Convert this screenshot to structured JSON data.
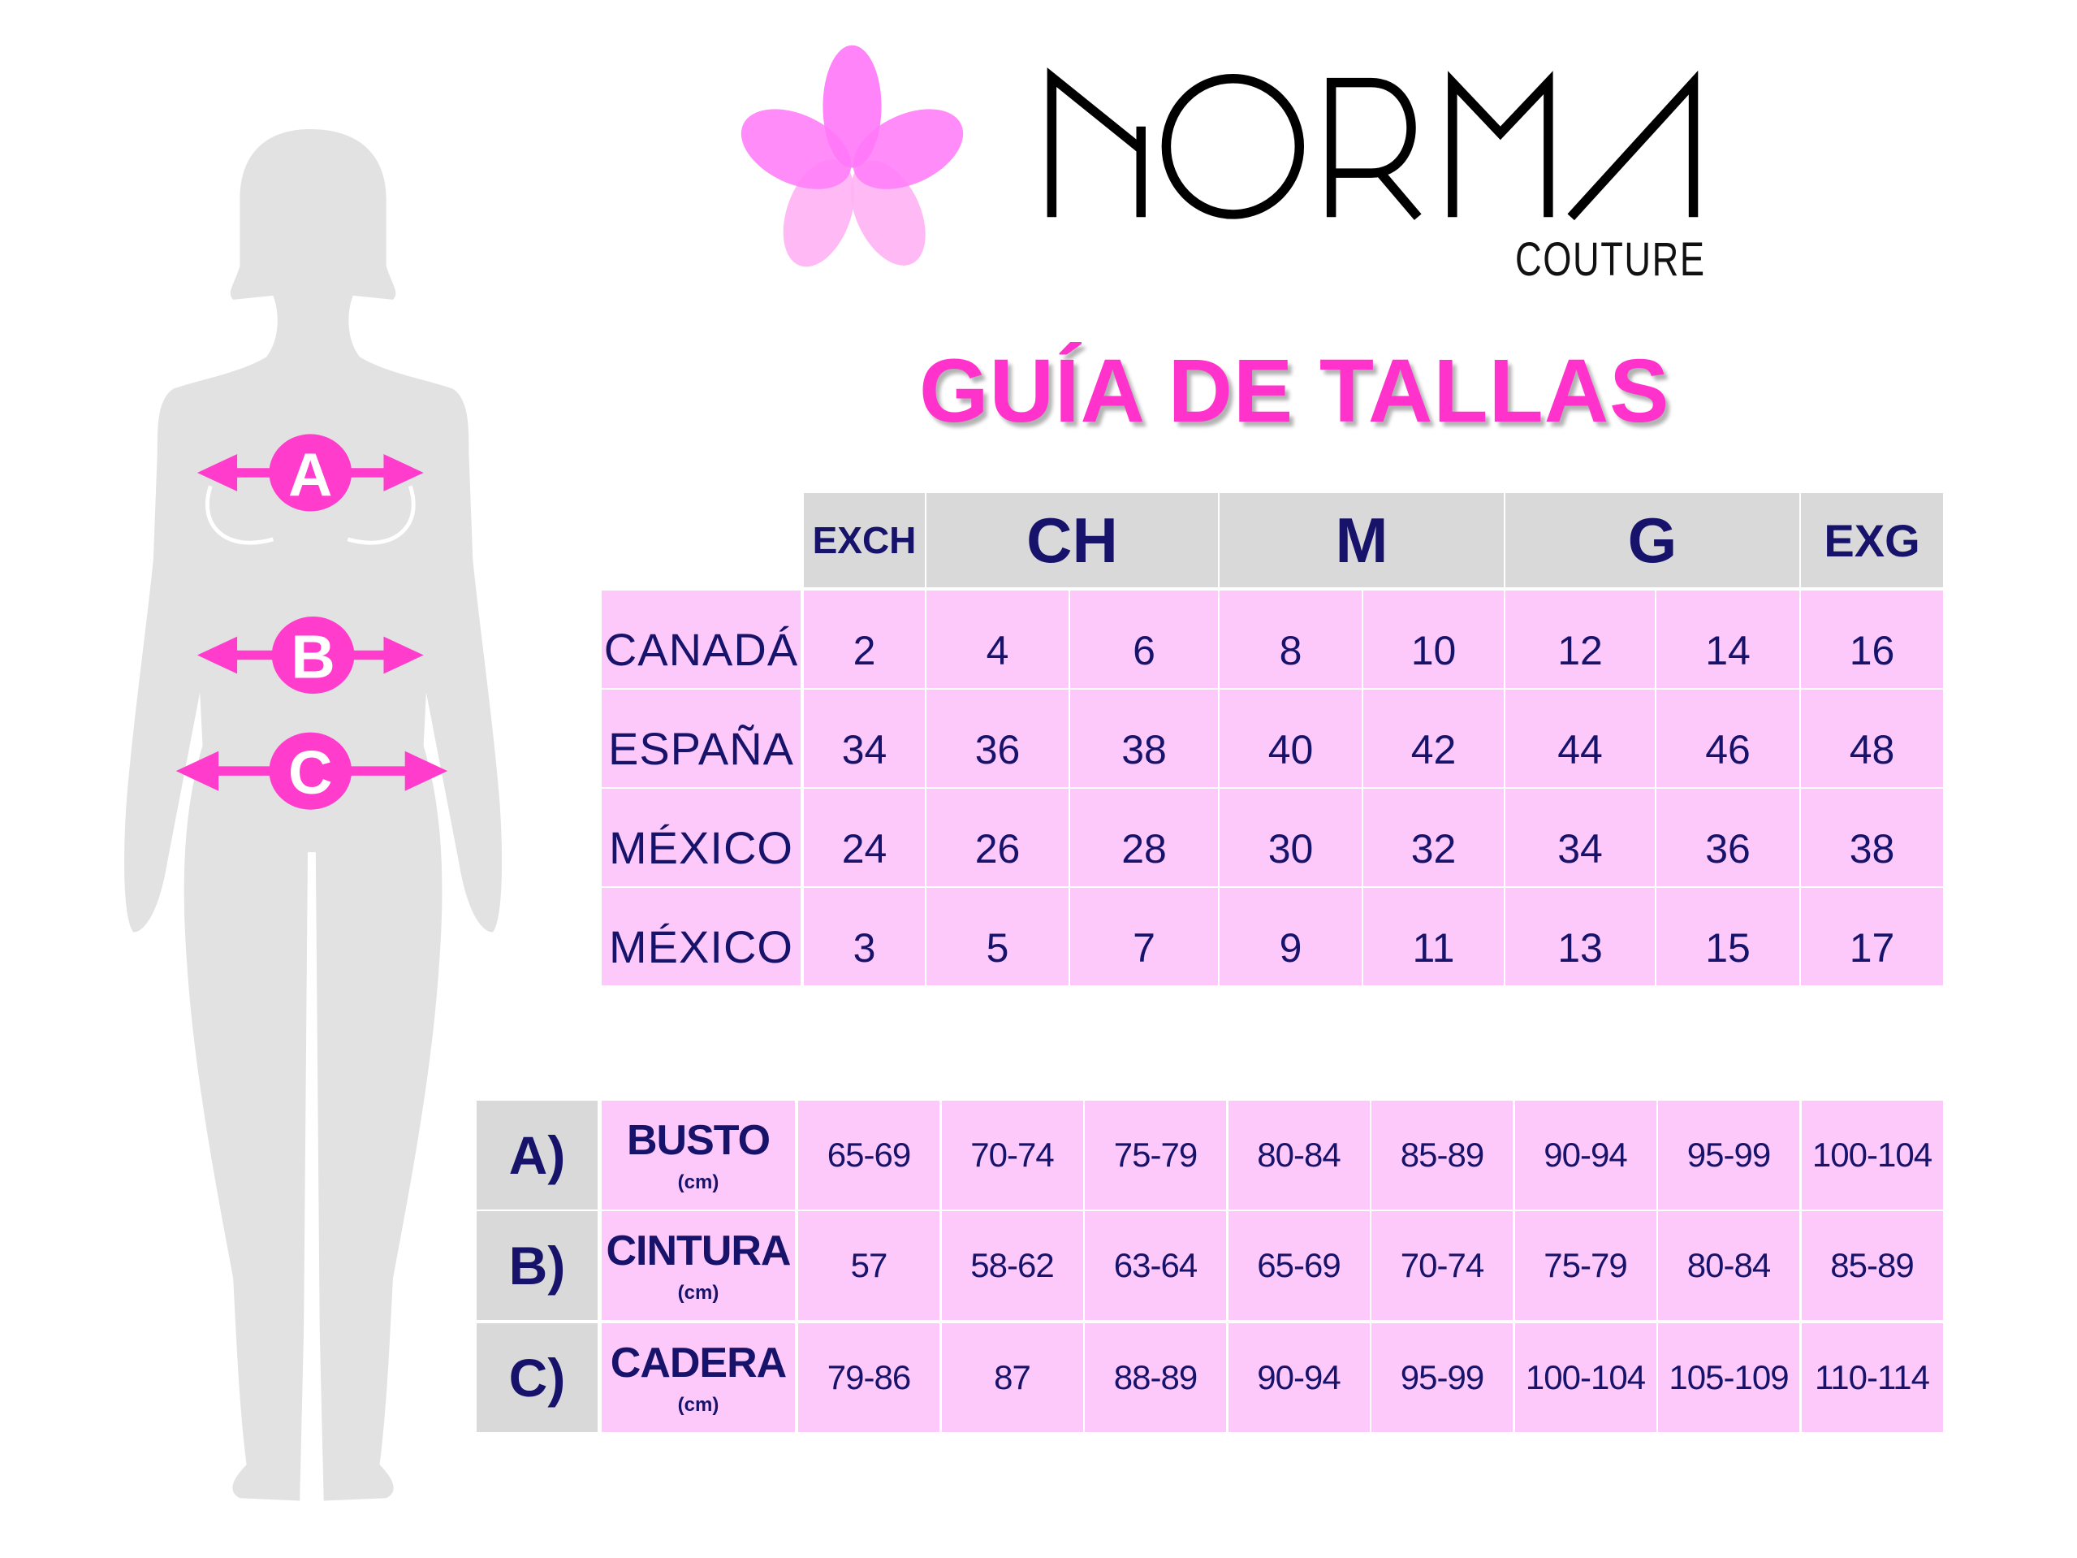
{
  "brand": {
    "name": "NORMA",
    "subtitle": "COUTURE",
    "logo_icon": "flower-icon",
    "colors": {
      "flower": "#ff66ff",
      "flower_light": "#ffb3f5",
      "wordmark": "#000000"
    }
  },
  "title": "GUÍA DE TALLAS",
  "colors": {
    "accent": "#ff33cc",
    "text": "#17136b",
    "cell": "#fdc9fb",
    "header": "#d9d9d9",
    "silhouette": "#e2e2e2"
  },
  "figure": {
    "markers": [
      {
        "letter": "A",
        "meaning": "busto"
      },
      {
        "letter": "B",
        "meaning": "cintura"
      },
      {
        "letter": "C",
        "meaning": "cadera"
      }
    ]
  },
  "size_table": {
    "groups": [
      {
        "label": "EXCH",
        "span": 1
      },
      {
        "label": "CH",
        "span": 2
      },
      {
        "label": "M",
        "span": 2
      },
      {
        "label": "G",
        "span": 2
      },
      {
        "label": "EXG",
        "span": 1
      }
    ],
    "rows": [
      {
        "label": "CANADÁ",
        "values": [
          "2",
          "4",
          "6",
          "8",
          "10",
          "12",
          "14",
          "16"
        ]
      },
      {
        "label": "ESPAÑA",
        "values": [
          "34",
          "36",
          "38",
          "40",
          "42",
          "44",
          "46",
          "48"
        ]
      },
      {
        "label": "MÉXICO",
        "values": [
          "24",
          "26",
          "28",
          "30",
          "32",
          "34",
          "36",
          "38"
        ]
      },
      {
        "label": "MÉXICO",
        "values": [
          "3",
          "5",
          "7",
          "9",
          "11",
          "13",
          "15",
          "17"
        ]
      }
    ]
  },
  "measure_table": {
    "rows": [
      {
        "letter": "A)",
        "label": "BUSTO",
        "unit": "(cm)",
        "values": [
          "65-69",
          "70-74",
          "75-79",
          "80-84",
          "85-89",
          "90-94",
          "95-99",
          "100-104"
        ]
      },
      {
        "letter": "B)",
        "label": "CINTURA",
        "unit": "(cm)",
        "values": [
          "57",
          "58-62",
          "63-64",
          "65-69",
          "70-74",
          "75-79",
          "80-84",
          "85-89"
        ]
      },
      {
        "letter": "C)",
        "label": "CADERA",
        "unit": "(cm)",
        "values": [
          "79-86",
          "87",
          "88-89",
          "90-94",
          "95-99",
          "100-104",
          "105-109",
          "110-114"
        ]
      }
    ]
  }
}
